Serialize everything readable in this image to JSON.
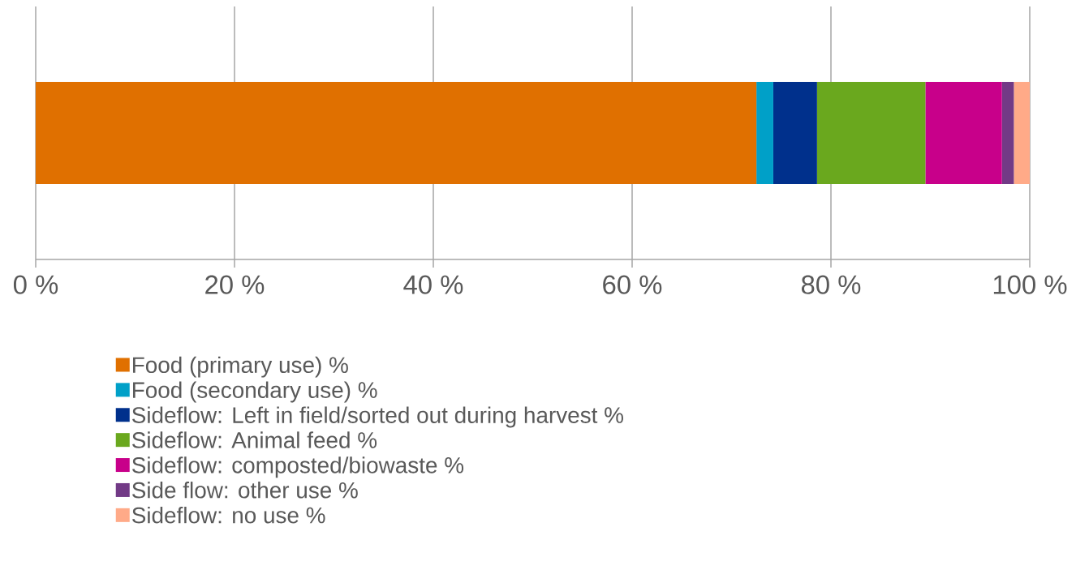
{
  "chart_data": {
    "type": "bar",
    "orientation": "horizontal",
    "stacked": true,
    "categories": [
      null
    ],
    "series": [
      {
        "name": "Food (primary use) %",
        "color": "#e07000",
        "values": [
          72.5
        ]
      },
      {
        "name": "Food (secondary use) %",
        "color": "#00a0c8",
        "values": [
          1.7
        ]
      },
      {
        "name": "Sideflow: Left in field/sorted out during harvest %",
        "color": "#00308c",
        "values": [
          4.4
        ]
      },
      {
        "name": "Sideflow: Animal feed %",
        "color": "#6aa81e",
        "values": [
          10.9
        ]
      },
      {
        "name": "Sideflow: composted/biowaste %",
        "color": "#c8008a",
        "values": [
          7.7
        ]
      },
      {
        "name": "Side flow: other use %",
        "color": "#723a86",
        "values": [
          1.2
        ]
      },
      {
        "name": "Sideflow: no use %",
        "color": "#ffaa88",
        "values": [
          1.6
        ]
      }
    ],
    "xlim": [
      0,
      100
    ],
    "xticks": [
      {
        "value": 0,
        "label": "0 %"
      },
      {
        "value": 20,
        "label": "20 %"
      },
      {
        "value": 40,
        "label": "40 %"
      },
      {
        "value": 60,
        "label": "60 %"
      },
      {
        "value": 80,
        "label": "80 %"
      },
      {
        "value": 100,
        "label": "100 %"
      }
    ],
    "grid": "x",
    "legend": "bottom"
  }
}
